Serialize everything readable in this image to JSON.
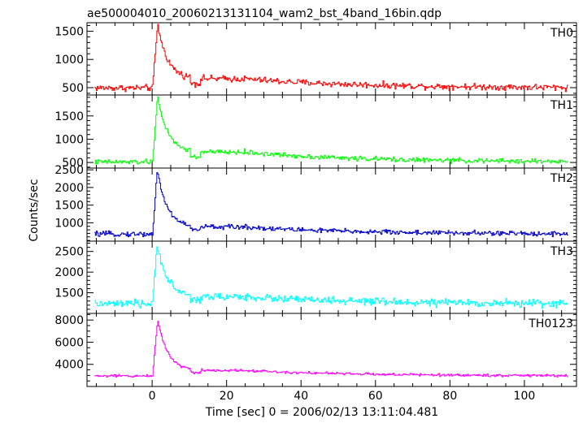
{
  "title": "ae500004010_20060213131104_wam2_bst_4band_16bin.qdp",
  "xlabel": "Time [sec] 0 = 2006/02/13 13:11:04.481",
  "ylabel": "Counts/sec",
  "chart_data": {
    "type": "line",
    "shared_x": {
      "xlim": [
        -17.5,
        114
      ],
      "ticks": [
        0,
        20,
        40,
        60,
        80,
        100
      ],
      "tick_labels": [
        "0",
        "20",
        "40",
        "60",
        "80",
        "100"
      ],
      "minor_step": 5
    },
    "grid": false,
    "panels": [
      {
        "name": "TH0",
        "color": "#ff0000",
        "ylim": [
          370,
          1650
        ],
        "yticks": [
          500,
          1000,
          1500
        ],
        "ytick_labels": [
          "500",
          "1000",
          "1500"
        ],
        "minor_step": 100,
        "x_range": [
          -15.5,
          111.5
        ],
        "baseline": 495,
        "noise": 28,
        "peak": 1620,
        "spike_start": 0.0,
        "peak_time": 1.4,
        "plateau_level": 655,
        "plateau_start": 8,
        "plateau_end": 25,
        "series": [
          {
            "x": -15.0,
            "y": 495
          },
          {
            "x": 0.0,
            "y": 500
          },
          {
            "x": 1.5,
            "y": 1620
          },
          {
            "x": 3.0,
            "y": 1200
          },
          {
            "x": 5.0,
            "y": 950
          },
          {
            "x": 8.0,
            "y": 700
          },
          {
            "x": 15.0,
            "y": 660
          },
          {
            "x": 25.0,
            "y": 640
          },
          {
            "x": 40.0,
            "y": 580
          },
          {
            "x": 60.0,
            "y": 540
          },
          {
            "x": 80.0,
            "y": 520
          },
          {
            "x": 111.0,
            "y": 500
          }
        ]
      },
      {
        "name": "TH1",
        "color": "#00ff00",
        "ylim": [
          380,
          1950
        ],
        "yticks": [
          500,
          1000,
          1500
        ],
        "ytick_labels": [
          "500",
          "1000",
          "1500"
        ],
        "minor_step": 100,
        "x_range": [
          -15.5,
          111.5
        ],
        "baseline": 510,
        "noise": 26,
        "peak": 1930,
        "spike_start": 0.0,
        "peak_time": 1.4,
        "plateau_level": 720,
        "plateau_start": 8,
        "plateau_end": 25,
        "series": [
          {
            "x": -15.0,
            "y": 500
          },
          {
            "x": 0.0,
            "y": 520
          },
          {
            "x": 1.5,
            "y": 1930
          },
          {
            "x": 3.0,
            "y": 1450
          },
          {
            "x": 5.0,
            "y": 1100
          },
          {
            "x": 8.0,
            "y": 780
          },
          {
            "x": 15.0,
            "y": 730
          },
          {
            "x": 25.0,
            "y": 650
          },
          {
            "x": 40.0,
            "y": 560
          },
          {
            "x": 60.0,
            "y": 530
          },
          {
            "x": 80.0,
            "y": 510
          },
          {
            "x": 111.0,
            "y": 500
          }
        ]
      },
      {
        "name": "TH2",
        "color": "#0000cc",
        "ylim": [
          480,
          2550
        ],
        "yticks": [
          1000,
          1500,
          2000,
          2500
        ],
        "ytick_labels": [
          "1000",
          "1500",
          "2000",
          "2500"
        ],
        "minor_step": 100,
        "x_range": [
          -15.5,
          111.5
        ],
        "baseline": 680,
        "noise": 35,
        "peak": 2480,
        "spike_start": 0.0,
        "peak_time": 1.3,
        "plateau_level": 880,
        "plateau_start": 8,
        "plateau_end": 25,
        "series": [
          {
            "x": -15.0,
            "y": 660
          },
          {
            "x": 0.0,
            "y": 720
          },
          {
            "x": 1.5,
            "y": 2480
          },
          {
            "x": 3.0,
            "y": 1700
          },
          {
            "x": 5.0,
            "y": 1250
          },
          {
            "x": 8.0,
            "y": 950
          },
          {
            "x": 15.0,
            "y": 900
          },
          {
            "x": 25.0,
            "y": 820
          },
          {
            "x": 40.0,
            "y": 760
          },
          {
            "x": 60.0,
            "y": 720
          },
          {
            "x": 80.0,
            "y": 700
          },
          {
            "x": 111.0,
            "y": 690
          }
        ]
      },
      {
        "name": "TH3",
        "color": "#00ffff",
        "ylim": [
          1000,
          2750
        ],
        "yticks": [
          1500,
          2000,
          2500
        ],
        "ytick_labels": [
          "1500",
          "2000",
          "2500"
        ],
        "minor_step": 100,
        "x_range": [
          -15.5,
          111.5
        ],
        "baseline": 1230,
        "noise": 45,
        "peak": 2700,
        "spike_start": 0.0,
        "peak_time": 1.3,
        "plateau_level": 1400,
        "plateau_start": 8,
        "plateau_end": 25,
        "series": [
          {
            "x": -15.0,
            "y": 1200
          },
          {
            "x": 0.0,
            "y": 1250
          },
          {
            "x": 1.5,
            "y": 2700
          },
          {
            "x": 3.0,
            "y": 1850
          },
          {
            "x": 5.0,
            "y": 1650
          },
          {
            "x": 8.0,
            "y": 1450
          },
          {
            "x": 15.0,
            "y": 1400
          },
          {
            "x": 25.0,
            "y": 1330
          },
          {
            "x": 40.0,
            "y": 1300
          },
          {
            "x": 60.0,
            "y": 1260
          },
          {
            "x": 80.0,
            "y": 1250
          },
          {
            "x": 111.0,
            "y": 1230
          }
        ]
      },
      {
        "name": "TH0123",
        "color": "#ff00ff",
        "ylim": [
          2000,
          8600
        ],
        "yticks": [
          4000,
          6000,
          8000
        ],
        "ytick_labels": [
          "4000",
          "6000",
          "8000"
        ],
        "minor_step": 500,
        "x_range": [
          -15.5,
          111.5
        ],
        "baseline": 2950,
        "noise": 60,
        "peak": 8100,
        "spike_start": 0.0,
        "peak_time": 1.4,
        "plateau_level": 3450,
        "plateau_start": 8,
        "plateau_end": 25,
        "series": [
          {
            "x": -15.0,
            "y": 2900
          },
          {
            "x": 0.0,
            "y": 3000
          },
          {
            "x": 1.5,
            "y": 8100
          },
          {
            "x": 3.0,
            "y": 5800
          },
          {
            "x": 5.0,
            "y": 4400
          },
          {
            "x": 8.0,
            "y": 3700
          },
          {
            "x": 15.0,
            "y": 3500
          },
          {
            "x": 25.0,
            "y": 3250
          },
          {
            "x": 40.0,
            "y": 3100
          },
          {
            "x": 60.0,
            "y": 3000
          },
          {
            "x": 80.0,
            "y": 2980
          },
          {
            "x": 111.0,
            "y": 2950
          }
        ]
      }
    ]
  }
}
